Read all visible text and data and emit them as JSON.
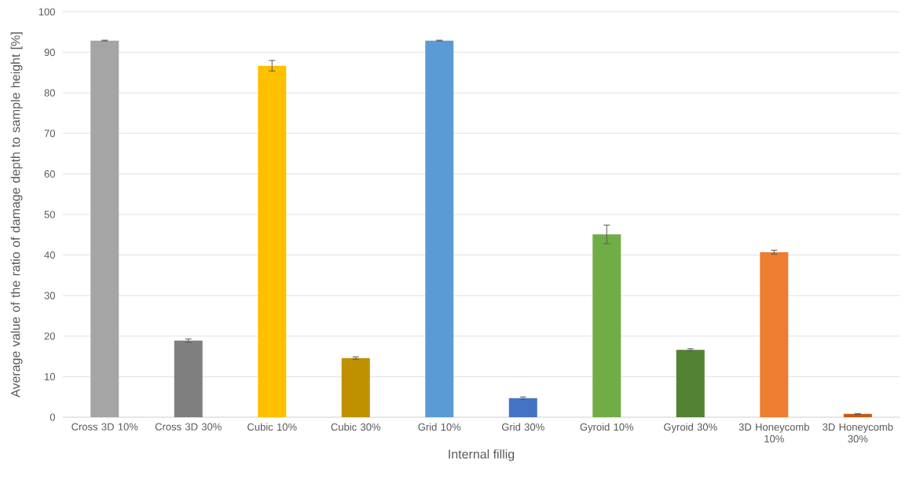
{
  "chart_data": {
    "type": "bar",
    "xlabel": "Internal fillig",
    "ylabel": "Average value of the ratio of damage depth to sample height [%]",
    "categories": [
      "Cross 3D 10%",
      "Cross 3D 30%",
      "Cubic 10%",
      "Cubic 30%",
      "Grid 10%",
      "Grid 30%",
      "Gyroid 10%",
      "Gyroid 30%",
      "3D Honeycomb 10%",
      "3D Honeycomb 30%"
    ],
    "values": [
      92.9,
      18.9,
      86.7,
      14.6,
      92.9,
      4.7,
      45.1,
      16.6,
      40.7,
      0.8
    ],
    "errors": [
      0.1,
      0.4,
      1.3,
      0.3,
      0.1,
      0.3,
      2.3,
      0.3,
      0.5,
      0.1
    ],
    "colors": [
      "#a5a5a5",
      "#7f7f7f",
      "#ffc000",
      "#bf9000",
      "#5b9bd5",
      "#4472c4",
      "#70ad47",
      "#548235",
      "#ed7d31",
      "#c55a11"
    ],
    "ylim": [
      0,
      100
    ],
    "yticks": [
      0,
      10,
      20,
      30,
      40,
      50,
      60,
      70,
      80,
      90,
      100
    ],
    "grid": "y"
  }
}
